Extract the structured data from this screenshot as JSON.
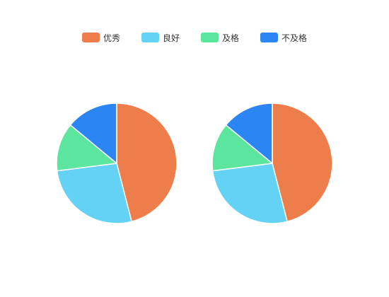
{
  "chart_data": [
    {
      "type": "pie",
      "categories": [
        "优秀",
        "良好",
        "及格",
        "不及格"
      ],
      "values": [
        46,
        27,
        13,
        14
      ],
      "legend": "top-center"
    },
    {
      "type": "pie",
      "categories": [
        "优秀",
        "良好",
        "及格",
        "不及格"
      ],
      "values": [
        46,
        27,
        13,
        14
      ],
      "legend": "top-center"
    }
  ],
  "colors": [
    "#ee7d4c",
    "#64d2f4",
    "#5ce59c",
    "#2b85f2"
  ]
}
